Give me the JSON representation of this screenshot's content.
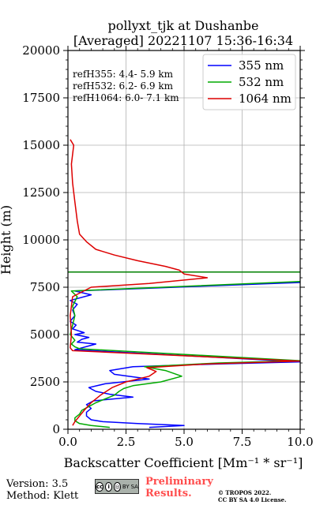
{
  "chart_data": {
    "type": "line",
    "title_line1": "pollyxt_tjk at Dushanbe",
    "title_line2": "[Averaged] 20221107 15:36-16:34",
    "xlabel": "Backscatter Coefficient [Mm⁻¹ * sr⁻¹]",
    "ylabel": "Height (m)",
    "xlim": [
      0,
      10
    ],
    "ylim": [
      0,
      20000
    ],
    "x_ticks": [
      0,
      2.5,
      5,
      7.5,
      10
    ],
    "x_tick_labels": [
      "0.0",
      "2.5",
      "5.0",
      "7.5",
      "10.0"
    ],
    "y_ticks": [
      0,
      2500,
      5000,
      7500,
      10000,
      12500,
      15000,
      17500,
      20000
    ],
    "y_tick_labels": [
      "0",
      "2500",
      "5000",
      "7500",
      "10000",
      "12500",
      "15000",
      "17500",
      "20000"
    ],
    "grid": true,
    "legend_position": "top-right",
    "annotations": [
      "refH355:  4.4- 5.9 km",
      "refH532:  6.2- 6.9 km",
      "refH1064:  6.0- 7.1 km"
    ],
    "hline": {
      "y": 8300,
      "color": "#008000"
    },
    "series": [
      {
        "name": "355 nm",
        "color": "#0000ff",
        "points": [
          [
            3.5,
            100
          ],
          [
            5.0,
            200
          ],
          [
            3.0,
            300
          ],
          [
            1.5,
            400
          ],
          [
            1.0,
            500
          ],
          [
            0.8,
            700
          ],
          [
            0.8,
            900
          ],
          [
            1.0,
            1100
          ],
          [
            0.8,
            1300
          ],
          [
            1.1,
            1500
          ],
          [
            2.8,
            1700
          ],
          [
            1.8,
            1850
          ],
          [
            1.2,
            2000
          ],
          [
            0.9,
            2200
          ],
          [
            1.6,
            2400
          ],
          [
            3.5,
            2650
          ],
          [
            2.0,
            2900
          ],
          [
            1.8,
            3100
          ],
          [
            2.8,
            3300
          ],
          [
            6.5,
            3450
          ],
          [
            10.0,
            3560
          ],
          [
            0.3,
            4200
          ],
          [
            0.6,
            4300
          ],
          [
            0.9,
            4400
          ],
          [
            1.2,
            4500
          ],
          [
            0.4,
            4600
          ],
          [
            0.6,
            4750
          ],
          [
            0.9,
            4850
          ],
          [
            0.3,
            5000
          ],
          [
            0.7,
            5100
          ],
          [
            0.2,
            5300
          ],
          [
            0.35,
            5500
          ],
          [
            0.1,
            5700
          ],
          [
            0.3,
            6000
          ],
          [
            0.2,
            6300
          ],
          [
            0.4,
            6600
          ],
          [
            0.1,
            6800
          ],
          [
            1.0,
            7100
          ],
          [
            0.3,
            7300
          ],
          [
            10.0,
            7750
          ]
        ]
      },
      {
        "name": "532 nm",
        "color": "#00aa00",
        "points": [
          [
            1.8,
            100
          ],
          [
            1.0,
            200
          ],
          [
            0.5,
            300
          ],
          [
            0.3,
            450
          ],
          [
            0.3,
            600
          ],
          [
            0.5,
            800
          ],
          [
            0.6,
            1000
          ],
          [
            0.9,
            1200
          ],
          [
            1.2,
            1400
          ],
          [
            1.6,
            1600
          ],
          [
            2.0,
            1800
          ],
          [
            2.2,
            2000
          ],
          [
            2.4,
            2150
          ],
          [
            2.8,
            2300
          ],
          [
            4.0,
            2500
          ],
          [
            4.9,
            2800
          ],
          [
            4.2,
            3100
          ],
          [
            3.3,
            3300
          ],
          [
            6.5,
            3500
          ],
          [
            10.0,
            3620
          ],
          [
            0.5,
            4250
          ],
          [
            0.3,
            4350
          ],
          [
            0.15,
            4500
          ],
          [
            0.3,
            4700
          ],
          [
            0.1,
            5000
          ],
          [
            0.2,
            5500
          ],
          [
            0.3,
            6000
          ],
          [
            0.2,
            6500
          ],
          [
            0.4,
            7000
          ],
          [
            0.15,
            7300
          ],
          [
            10.0,
            7800
          ]
        ]
      },
      {
        "name": "1064 nm",
        "color": "#dd0000",
        "points": [
          [
            0.2,
            200
          ],
          [
            0.3,
            400
          ],
          [
            0.5,
            700
          ],
          [
            0.7,
            1000
          ],
          [
            1.0,
            1400
          ],
          [
            1.4,
            1800
          ],
          [
            1.9,
            2200
          ],
          [
            2.5,
            2500
          ],
          [
            3.5,
            2800
          ],
          [
            3.8,
            3050
          ],
          [
            3.4,
            3250
          ],
          [
            6.0,
            3450
          ],
          [
            10.0,
            3600
          ],
          [
            0.2,
            4150
          ],
          [
            0.1,
            4300
          ],
          [
            0.15,
            5000
          ],
          [
            0.1,
            6000
          ],
          [
            0.2,
            7000
          ],
          [
            1.0,
            7500
          ],
          [
            3.5,
            7700
          ],
          [
            6.0,
            8000
          ],
          [
            5.0,
            8200
          ],
          [
            4.8,
            8400
          ],
          [
            4.2,
            8600
          ],
          [
            3.0,
            8900
          ],
          [
            2.0,
            9200
          ],
          [
            1.2,
            9500
          ],
          [
            0.8,
            9900
          ],
          [
            0.5,
            10300
          ],
          [
            0.4,
            11000
          ],
          [
            0.3,
            12000
          ],
          [
            0.2,
            13000
          ],
          [
            0.15,
            14000
          ],
          [
            0.25,
            15000
          ],
          [
            0.1,
            15300
          ]
        ]
      }
    ]
  },
  "footer": {
    "version": "Version: 3.5",
    "method": "Method: Klett",
    "license_badge": [
      "cc",
      "i",
      "◎"
    ],
    "license_badge_text": [
      "BY",
      "SA"
    ],
    "preliminary_line1": "Preliminary",
    "preliminary_line2": "Results.",
    "copyright_line1": "© TROPOS 2022.",
    "copyright_line2": "CC BY SA 4.0 License."
  }
}
